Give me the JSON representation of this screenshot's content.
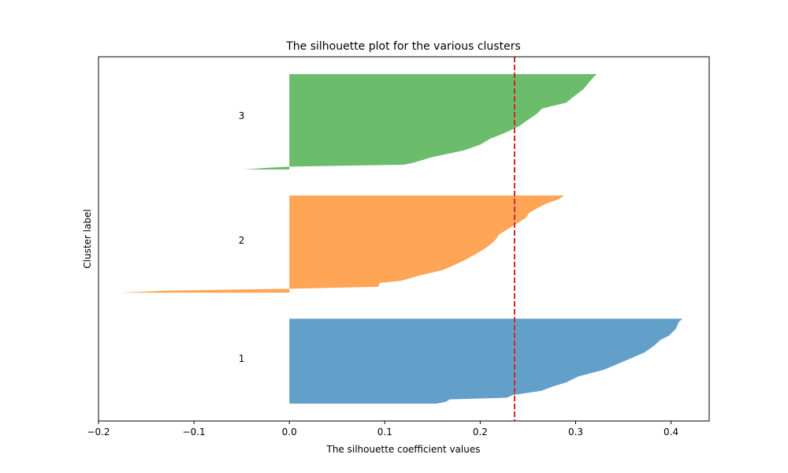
{
  "chart_data": {
    "type": "area",
    "title": "The silhouette plot for the various clusters",
    "xlabel": "The silhouette coefficient values",
    "ylabel": "Cluster label",
    "xlim": [
      -0.2,
      0.44
    ],
    "x_ticks": [
      -0.2,
      -0.1,
      0.0,
      0.1,
      0.2,
      0.3,
      0.4
    ],
    "x_tick_labels": [
      "−0.2",
      "−0.1",
      "0.0",
      "0.1",
      "0.2",
      "0.3",
      "0.4"
    ],
    "ylim": [
      0,
      210
    ],
    "y_ticks": "none",
    "grid": false,
    "average_silhouette": 0.236,
    "average_line_color": "#d62728",
    "clusters": [
      {
        "label": "1",
        "color": "#1f77b4",
        "y_lower": 10,
        "y_upper": 59,
        "label_y": 36,
        "profile": [
          [
            0,
            0.154
          ],
          [
            0.02,
            0.164
          ],
          [
            0.05,
            0.168
          ],
          [
            0.07,
            0.228
          ],
          [
            0.1,
            0.234
          ],
          [
            0.15,
            0.264
          ],
          [
            0.2,
            0.276
          ],
          [
            0.25,
            0.29
          ],
          [
            0.32,
            0.303
          ],
          [
            0.4,
            0.33
          ],
          [
            0.5,
            0.351
          ],
          [
            0.6,
            0.372
          ],
          [
            0.68,
            0.382
          ],
          [
            0.75,
            0.389
          ],
          [
            0.8,
            0.398
          ],
          [
            0.88,
            0.405
          ],
          [
            0.93,
            0.407
          ],
          [
            0.96,
            0.408
          ],
          [
            1.0,
            0.412
          ]
        ]
      },
      {
        "label": "2",
        "color": "#ff7f0e",
        "y_lower": 74,
        "y_upper": 130,
        "label_y": 104,
        "profile": [
          [
            0,
            -0.177
          ],
          [
            0.02,
            -0.13
          ],
          [
            0.04,
            0.0
          ],
          [
            0.06,
            0.093
          ],
          [
            0.1,
            0.095
          ],
          [
            0.12,
            0.116
          ],
          [
            0.18,
            0.138
          ],
          [
            0.23,
            0.16
          ],
          [
            0.28,
            0.172
          ],
          [
            0.34,
            0.185
          ],
          [
            0.4,
            0.196
          ],
          [
            0.46,
            0.206
          ],
          [
            0.53,
            0.215
          ],
          [
            0.6,
            0.22
          ],
          [
            0.66,
            0.23
          ],
          [
            0.72,
            0.24
          ],
          [
            0.77,
            0.248
          ],
          [
            0.82,
            0.251
          ],
          [
            0.87,
            0.26
          ],
          [
            0.92,
            0.27
          ],
          [
            0.96,
            0.282
          ],
          [
            1.0,
            0.288
          ]
        ]
      },
      {
        "label": "3",
        "color": "#2ca02c",
        "y_lower": 145,
        "y_upper": 200,
        "label_y": 176,
        "profile": [
          [
            0,
            -0.048
          ],
          [
            0.02,
            -0.02
          ],
          [
            0.03,
            0.0
          ],
          [
            0.05,
            0.12
          ],
          [
            0.07,
            0.13
          ],
          [
            0.13,
            0.15
          ],
          [
            0.2,
            0.183
          ],
          [
            0.26,
            0.2
          ],
          [
            0.32,
            0.21
          ],
          [
            0.38,
            0.225
          ],
          [
            0.45,
            0.24
          ],
          [
            0.52,
            0.25
          ],
          [
            0.58,
            0.259
          ],
          [
            0.64,
            0.265
          ],
          [
            0.7,
            0.29
          ],
          [
            0.78,
            0.3
          ],
          [
            0.84,
            0.308
          ],
          [
            0.9,
            0.313
          ],
          [
            0.96,
            0.318
          ],
          [
            1.0,
            0.322
          ]
        ]
      }
    ]
  }
}
